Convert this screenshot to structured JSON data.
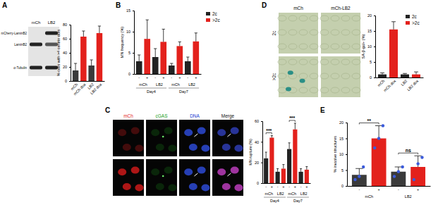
{
  "chart_data": [
    {
      "type": "bar",
      "y_label": "% cells with >4 centrin dots",
      "categories": [
        "mCh",
        "mCh dox",
        "LB2",
        "LB2 dox"
      ],
      "values": [
        15,
        63,
        22,
        68
      ],
      "errors": [
        10,
        8,
        8,
        10
      ],
      "colors": [
        "#3a3a3a",
        "#e3211c",
        "#3a3a3a",
        "#e3211c"
      ],
      "ylim": [
        0,
        80
      ],
      "yticks": [
        0,
        20,
        40,
        60,
        80
      ]
    },
    {
      "type": "bar",
      "y_label": "MN frequency (%)",
      "categories": [
        "-",
        "+",
        "-",
        "+",
        "-",
        "+",
        "-",
        "+"
      ],
      "groups": [
        "mCh",
        "LB2",
        "mCh",
        "LB2"
      ],
      "supergroups": [
        "Day4",
        "Day7"
      ],
      "series": [
        {
          "name": "2c",
          "color": "#222222",
          "values": [
            3,
            null,
            4,
            null,
            2,
            null,
            3,
            null
          ],
          "errors": [
            1.5,
            null,
            2,
            null,
            0.5,
            null,
            1,
            null
          ]
        },
        {
          "name": ">2c",
          "color": "#e3211c",
          "values": [
            null,
            8.3,
            null,
            7.6,
            null,
            6.6,
            null,
            7.7
          ],
          "errors": [
            null,
            4.5,
            null,
            3,
            null,
            1,
            null,
            2
          ]
        }
      ],
      "ylim": [
        0,
        15
      ],
      "yticks": [
        0,
        5,
        10,
        15
      ],
      "legend": "right"
    },
    {
      "type": "bar",
      "y_label": "MN rupture (%)",
      "categories": [
        "-",
        "+",
        "-",
        "+",
        "-",
        "+",
        "-",
        "+"
      ],
      "groups": [
        "mCh",
        "LB2",
        "mCh",
        "LB2"
      ],
      "supergroups": [
        "Day4",
        "Day7"
      ],
      "series": [
        {
          "name": "2c",
          "color": "#222222",
          "values": [
            24,
            null,
            11,
            null,
            33,
            null,
            11,
            null
          ],
          "errors": [
            6,
            null,
            3,
            null,
            6,
            null,
            3,
            null
          ]
        },
        {
          "name": ">2c",
          "color": "#e3211c",
          "values": [
            null,
            44,
            null,
            14,
            null,
            52,
            null,
            13
          ],
          "errors": [
            null,
            2,
            null,
            4,
            null,
            6,
            null,
            3
          ]
        }
      ],
      "annotations": [
        {
          "text": "***",
          "from": 0,
          "to": 1
        },
        {
          "text": "***",
          "from": 4,
          "to": 5
        }
      ],
      "ylim": [
        0,
        60
      ],
      "yticks": [
        0,
        20,
        40,
        60
      ]
    },
    {
      "type": "bar",
      "y_label": "SA-β-gal+ (%)",
      "categories": [
        "mCh",
        "mCh dox",
        "LB2",
        "LB2 dox"
      ],
      "series": [
        {
          "name": "2c",
          "color": "#222222",
          "values": [
            1,
            null,
            1,
            null
          ],
          "errors": [
            0.5,
            null,
            0.3,
            null
          ]
        },
        {
          "name": ">2c",
          "color": "#e3211c",
          "values": [
            null,
            15.5,
            null,
            1
          ],
          "errors": [
            null,
            2.5,
            null,
            0.8
          ]
        }
      ],
      "ylim": [
        0,
        20
      ],
      "yticks": [
        0,
        5,
        10,
        15,
        20
      ],
      "legend": "upper right"
    },
    {
      "type": "bar",
      "y_label": "% invasive structures",
      "categories": [
        "-",
        "+",
        "-",
        "+"
      ],
      "groups": [
        "mCh",
        "LB2"
      ],
      "values": [
        3.5,
        15,
        4.5,
        6
      ],
      "errors": [
        2,
        4,
        1.5,
        3.5
      ],
      "colors": [
        "#3a3a3a",
        "#e3211c",
        "#3a3a3a",
        "#e3211c"
      ],
      "points": [
        [
          2,
          3,
          6
        ],
        [
          12,
          15,
          19
        ],
        [
          3,
          4.5,
          6
        ],
        [
          2,
          7,
          9
        ]
      ],
      "annotations": [
        {
          "text": "**",
          "from": 0,
          "to": 1
        },
        {
          "text": "ns",
          "from": 2,
          "to": 3
        }
      ],
      "ylim": [
        0,
        20
      ],
      "yticks": [
        0,
        5,
        10,
        15,
        20
      ]
    }
  ],
  "figure": {
    "panel_letters": [
      "A",
      "B",
      "C",
      "D",
      "E"
    ],
    "blot": {
      "lanes": [
        "mCh",
        "LB2"
      ],
      "bands": [
        "mCherry-LaminB2",
        "LaminB2",
        "α-Tubulin"
      ]
    },
    "fluorescence": {
      "channels": [
        "mCh",
        "cGAS",
        "DNA",
        "Merge"
      ]
    },
    "brightfield": {
      "columns": [
        "mCh",
        "mCh-LB2"
      ],
      "rows": [
        "2c",
        ">2c"
      ]
    }
  }
}
